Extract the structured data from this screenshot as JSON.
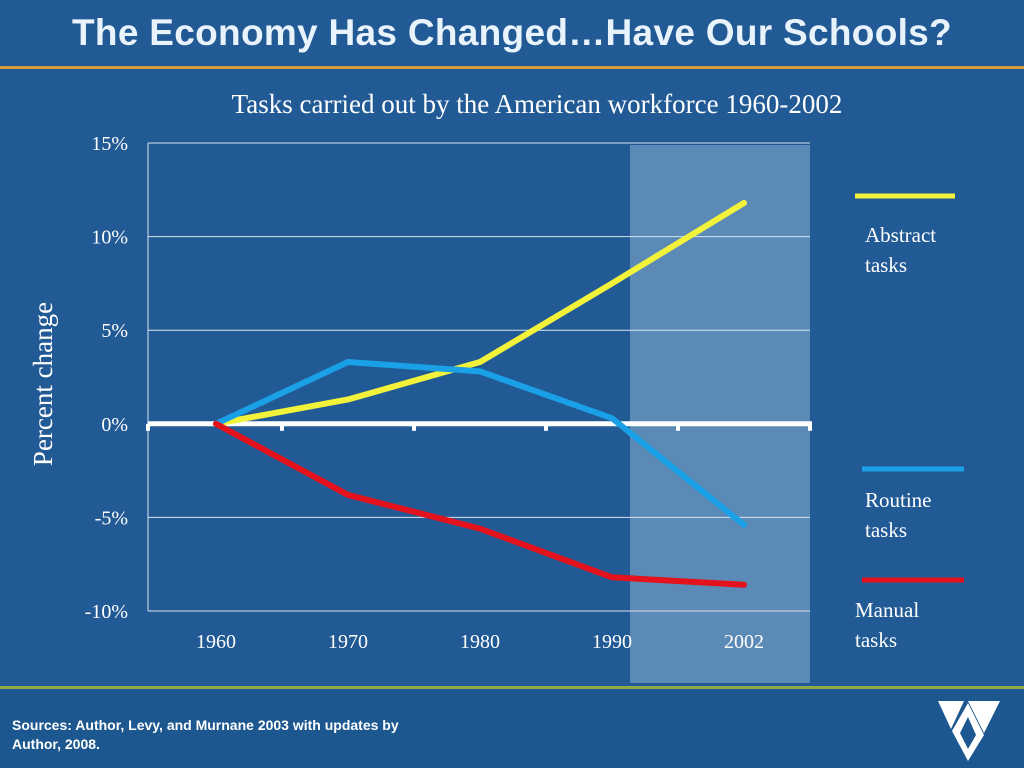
{
  "slide": {
    "title": "The Economy Has Changed…Have Our Schools?",
    "sources": "Sources: Author, Levy, and Murnane 2003 with updates by Author, 2008."
  },
  "colors": {
    "background": "#215a94",
    "title_rule": "#d99a3a",
    "footer_rule": "#8fa944",
    "highlight": "#6f9bc2"
  },
  "chart_data": {
    "type": "line",
    "title": "Tasks carried out by the American workforce 1960-2002",
    "xlabel": "",
    "ylabel": "Percent change",
    "categories": [
      "1960",
      "1970",
      "1980",
      "1990",
      "2002"
    ],
    "y_ticks": [
      "15%",
      "10%",
      "5%",
      "0%",
      "-5%",
      "-10%"
    ],
    "ylim": [
      -10,
      15
    ],
    "grid": true,
    "highlight_period": [
      "1990",
      "2002"
    ],
    "series": [
      {
        "name": "Abstract tasks",
        "values": [
          0,
          1.3,
          3.3,
          7.5,
          11.8
        ],
        "color": "#f2f23a"
      },
      {
        "name": "Routine tasks",
        "values": [
          0,
          3.3,
          2.8,
          0.3,
          -5.4
        ],
        "color": "#1aa0e6"
      },
      {
        "name": "Manual tasks",
        "values": [
          0,
          -3.8,
          -5.6,
          -8.2,
          -8.6
        ],
        "color": "#e3121c"
      }
    ]
  }
}
